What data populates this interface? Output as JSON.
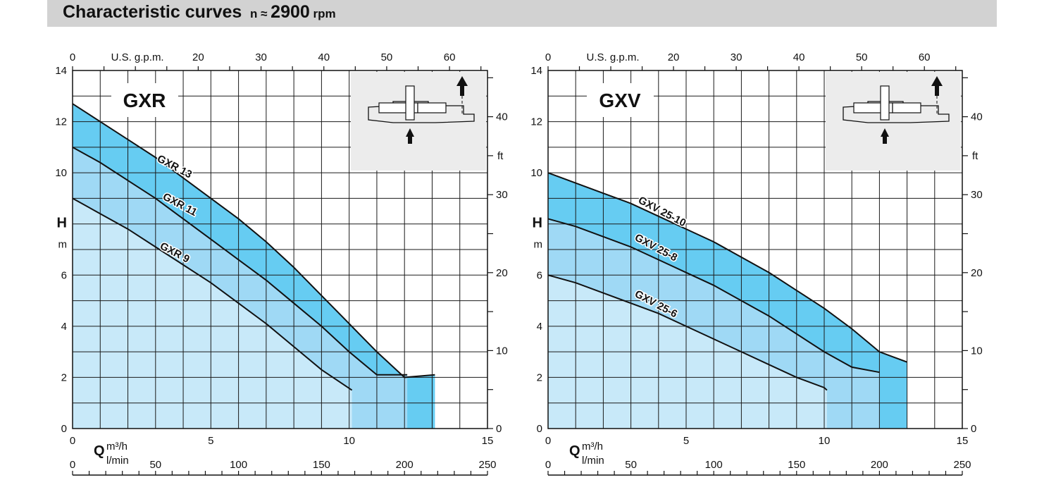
{
  "header": {
    "title": "Characteristic curves",
    "speed_prefix": "n ≈",
    "speed_value": "2900",
    "speed_unit": "rpm"
  },
  "colors": {
    "fill_outer": "#66ccf2",
    "fill_middle": "#9fd9f5",
    "fill_inner": "#c8e9f9",
    "grid": "#1a1a1a",
    "inset_bg": "#ececec"
  },
  "chart_data": [
    {
      "type": "line",
      "model_label": "GXR",
      "icon": "pump-inlet-bottom-outlet-top-icon",
      "xlabel": "Q",
      "x_unit_top": "m³/h",
      "x_unit_bottom": "l/min",
      "gpm_label": "U.S. g.p.m.",
      "ylabel": "H",
      "y_unit": "m",
      "ft_unit": "ft",
      "xlim": [
        0,
        15
      ],
      "ylim": [
        0,
        14
      ],
      "x_ticks": [
        0,
        5,
        10,
        15
      ],
      "y_ticks": [
        0,
        2,
        4,
        6,
        8,
        10,
        12,
        14
      ],
      "y_tick_labels": [
        "0",
        "2",
        "4",
        "6",
        "H",
        "10",
        "12",
        "14"
      ],
      "lmin_ticks": [
        0,
        50,
        100,
        150,
        200,
        250
      ],
      "gpm_ticks": [
        0,
        20,
        30,
        40,
        50,
        60
      ],
      "ft_ticks": [
        0,
        10,
        20,
        30,
        40
      ],
      "ft_tick_labels": [
        "0",
        "10",
        "20",
        "30",
        "40"
      ],
      "grid": true,
      "series": [
        {
          "name": "GXR 13",
          "x": [
            0,
            1,
            2,
            3,
            4,
            5,
            6,
            7,
            8,
            9,
            10,
            11,
            12,
            13.1
          ],
          "y": [
            12.7,
            12.0,
            11.3,
            10.6,
            9.8,
            9.0,
            8.2,
            7.3,
            6.3,
            5.2,
            4.1,
            3.0,
            2.0,
            2.1
          ],
          "end_x": 13.1
        },
        {
          "name": "GXR 11",
          "x": [
            0,
            1,
            2,
            3,
            4,
            5,
            6,
            7,
            8,
            9,
            10,
            11,
            12.1
          ],
          "y": [
            11.0,
            10.4,
            9.7,
            9.0,
            8.2,
            7.4,
            6.6,
            5.8,
            4.9,
            4.0,
            3.0,
            2.1,
            2.1
          ],
          "end_x": 12.1
        },
        {
          "name": "GXR 9",
          "x": [
            0,
            1,
            2,
            3,
            4,
            5,
            6,
            7,
            8,
            9,
            10.1
          ],
          "y": [
            9.0,
            8.4,
            7.8,
            7.1,
            6.4,
            5.7,
            4.9,
            4.1,
            3.2,
            2.3,
            1.5
          ],
          "end_x": 10.1
        }
      ]
    },
    {
      "type": "line",
      "model_label": "GXV",
      "icon": "pump-suction-bottom-outlet-top-icon",
      "xlabel": "Q",
      "x_unit_top": "m³/h",
      "x_unit_bottom": "l/min",
      "gpm_label": "U.S. g.p.m.",
      "ylabel": "H",
      "y_unit": "m",
      "ft_unit": "ft",
      "xlim": [
        0,
        15
      ],
      "ylim": [
        0,
        14
      ],
      "x_ticks": [
        0,
        5,
        10,
        15
      ],
      "y_ticks": [
        0,
        2,
        4,
        6,
        8,
        10,
        12,
        14
      ],
      "y_tick_labels": [
        "0",
        "2",
        "4",
        "6",
        "H",
        "10",
        "12",
        "14"
      ],
      "lmin_ticks": [
        0,
        50,
        100,
        150,
        200,
        250
      ],
      "gpm_ticks": [
        0,
        20,
        30,
        40,
        50,
        60
      ],
      "ft_ticks": [
        0,
        10,
        20,
        30,
        40
      ],
      "ft_tick_labels": [
        "0",
        "10",
        "20",
        "30",
        "40"
      ],
      "grid": true,
      "series": [
        {
          "name": "GXV 25-10",
          "x": [
            0,
            1,
            2,
            3,
            4,
            5,
            6,
            7,
            8,
            9,
            10,
            11,
            12,
            13
          ],
          "y": [
            10.0,
            9.6,
            9.2,
            8.8,
            8.3,
            7.8,
            7.3,
            6.7,
            6.1,
            5.4,
            4.7,
            3.9,
            3.0,
            2.6
          ],
          "end_x": 13.0
        },
        {
          "name": "GXV 25-8",
          "x": [
            0,
            1,
            2,
            3,
            4,
            5,
            6,
            7,
            8,
            9,
            10,
            11,
            12
          ],
          "y": [
            8.2,
            7.9,
            7.5,
            7.1,
            6.6,
            6.1,
            5.6,
            5.0,
            4.4,
            3.7,
            3.0,
            2.4,
            2.2
          ],
          "end_x": 12.0
        },
        {
          "name": "GXV 25-6",
          "x": [
            0,
            1,
            2,
            3,
            4,
            5,
            6,
            7,
            8,
            9,
            10,
            10.1
          ],
          "y": [
            6.0,
            5.7,
            5.3,
            4.9,
            4.5,
            4.0,
            3.5,
            3.0,
            2.5,
            2.0,
            1.6,
            1.5
          ],
          "end_x": 10.1
        }
      ]
    }
  ]
}
